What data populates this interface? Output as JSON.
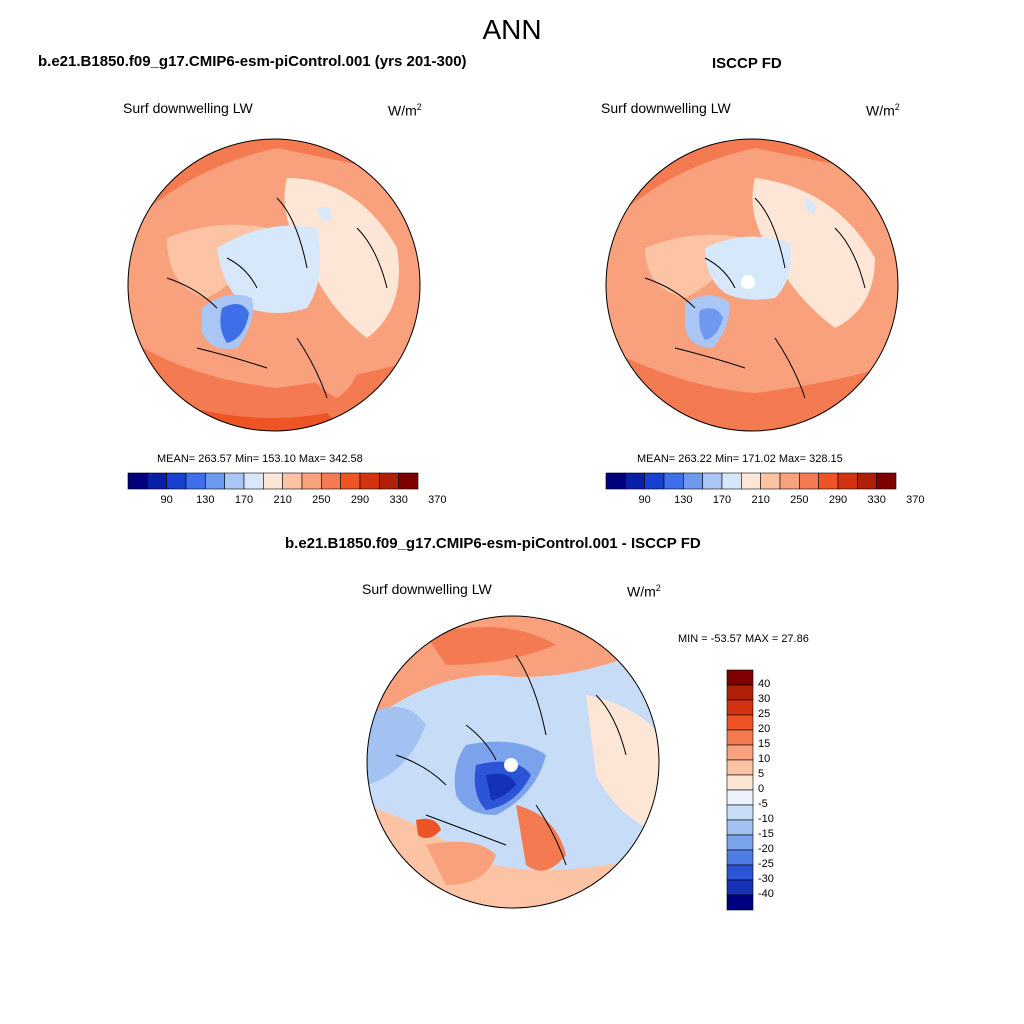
{
  "main_title": "ANN",
  "panels": [
    {
      "title": "b.e21.B1850.f09_g17.CMIP6-esm-piControl.001 (yrs 201-300)",
      "variable": "Surf downwelling LW",
      "units_base": "W/m",
      "units_exp": "2",
      "stats": "MEAN= 263.57  Min= 153.10  Max= 342.58",
      "colorbar_labels": [
        "90",
        "130",
        "170",
        "210",
        "250",
        "290",
        "330",
        "370"
      ]
    },
    {
      "title": "ISCCP FD",
      "variable": "Surf downwelling LW",
      "units_base": "W/m",
      "units_exp": "2",
      "stats": "MEAN= 263.22  Min= 171.02  Max= 328.15",
      "colorbar_labels": [
        "90",
        "130",
        "170",
        "210",
        "250",
        "290",
        "330",
        "370"
      ]
    },
    {
      "title": "b.e21.B1850.f09_g17.CMIP6-esm-piControl.001 - ISCCP FD",
      "variable": "Surf downwelling LW",
      "units_base": "W/m",
      "units_exp": "2",
      "stats": "MIN = -53.57 MAX =  27.86",
      "colorbar_labels": [
        "40",
        "30",
        "25",
        "20",
        "15",
        "10",
        "5",
        "0",
        "-5",
        "-10",
        "-15",
        "-20",
        "-25",
        "-30",
        "-40"
      ]
    }
  ],
  "colors": {
    "abs_scale": [
      "#00007f",
      "#0a1fa8",
      "#1540d0",
      "#3e6fe8",
      "#6f98f0",
      "#a9c6f5",
      "#d8e8fb",
      "#fde6d6",
      "#fcc4a4",
      "#f9a07c",
      "#f47a52",
      "#ee5424",
      "#d23410",
      "#b01f08",
      "#7f0000"
    ],
    "diff_scale": [
      "#7f0000",
      "#b01f08",
      "#d23410",
      "#ee5424",
      "#f47a52",
      "#f9a07c",
      "#fcc4a4",
      "#fde6d6",
      "#ecf2fb",
      "#c7dcf7",
      "#a3c2f2",
      "#7ba3ec",
      "#4e7ee4",
      "#2b55d6",
      "#1431b8",
      "#00007f"
    ]
  },
  "chart_data": [
    {
      "type": "heatmap",
      "title": "b.e21.B1850.f09_g17.CMIP6-esm-piControl.001 (yrs 201-300)",
      "variable": "Surf downwelling LW",
      "units": "W/m2",
      "mean": 263.57,
      "min": 153.1,
      "max": 342.58,
      "levels": [
        90,
        130,
        170,
        210,
        250,
        290,
        330,
        370
      ]
    },
    {
      "type": "heatmap",
      "title": "ISCCP FD",
      "variable": "Surf downwelling LW",
      "units": "W/m2",
      "mean": 263.22,
      "min": 171.02,
      "max": 328.15,
      "levels": [
        90,
        130,
        170,
        210,
        250,
        290,
        330,
        370
      ]
    },
    {
      "type": "heatmap",
      "title": "b.e21.B1850.f09_g17.CMIP6-esm-piControl.001 - ISCCP FD",
      "variable": "Surf downwelling LW",
      "units": "W/m2",
      "min": -53.57,
      "max": 27.86,
      "levels": [
        40,
        30,
        25,
        20,
        15,
        10,
        5,
        0,
        -5,
        -10,
        -15,
        -20,
        -25,
        -30,
        -40
      ]
    }
  ]
}
